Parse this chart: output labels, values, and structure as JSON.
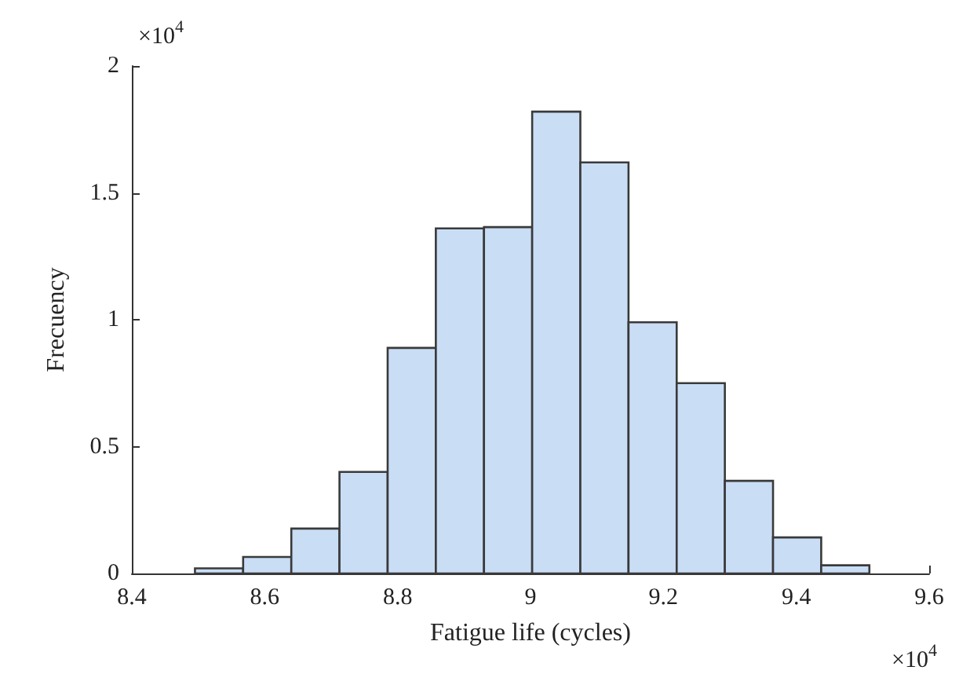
{
  "chart_data": {
    "type": "histogram",
    "xlabel": "Fatigue life (cycles)",
    "ylabel": "Frecuency",
    "bins": [
      8.495,
      8.5675,
      8.64,
      8.7125,
      8.785,
      8.8575,
      8.93,
      9.0025,
      9.075,
      9.1475,
      9.22,
      9.2925,
      9.365,
      9.4375,
      9.51
    ],
    "values": [
      0.02,
      0.065,
      0.177,
      0.4,
      0.889,
      1.36,
      1.365,
      1.82,
      1.62,
      0.99,
      0.75,
      0.365,
      0.142,
      0.032
    ],
    "color": "#c9ddf5",
    "xlim": [
      8.4,
      9.6
    ],
    "xticks": [
      8.4,
      8.6,
      8.8,
      9,
      9.2,
      9.4,
      9.6
    ],
    "ylim": [
      0,
      2
    ],
    "yticks": [
      0,
      0.5,
      1,
      1.5,
      2
    ],
    "annotations": [
      "×10$^{4}$",
      "×10$^{4}$"
    ],
    "grid": false
  }
}
